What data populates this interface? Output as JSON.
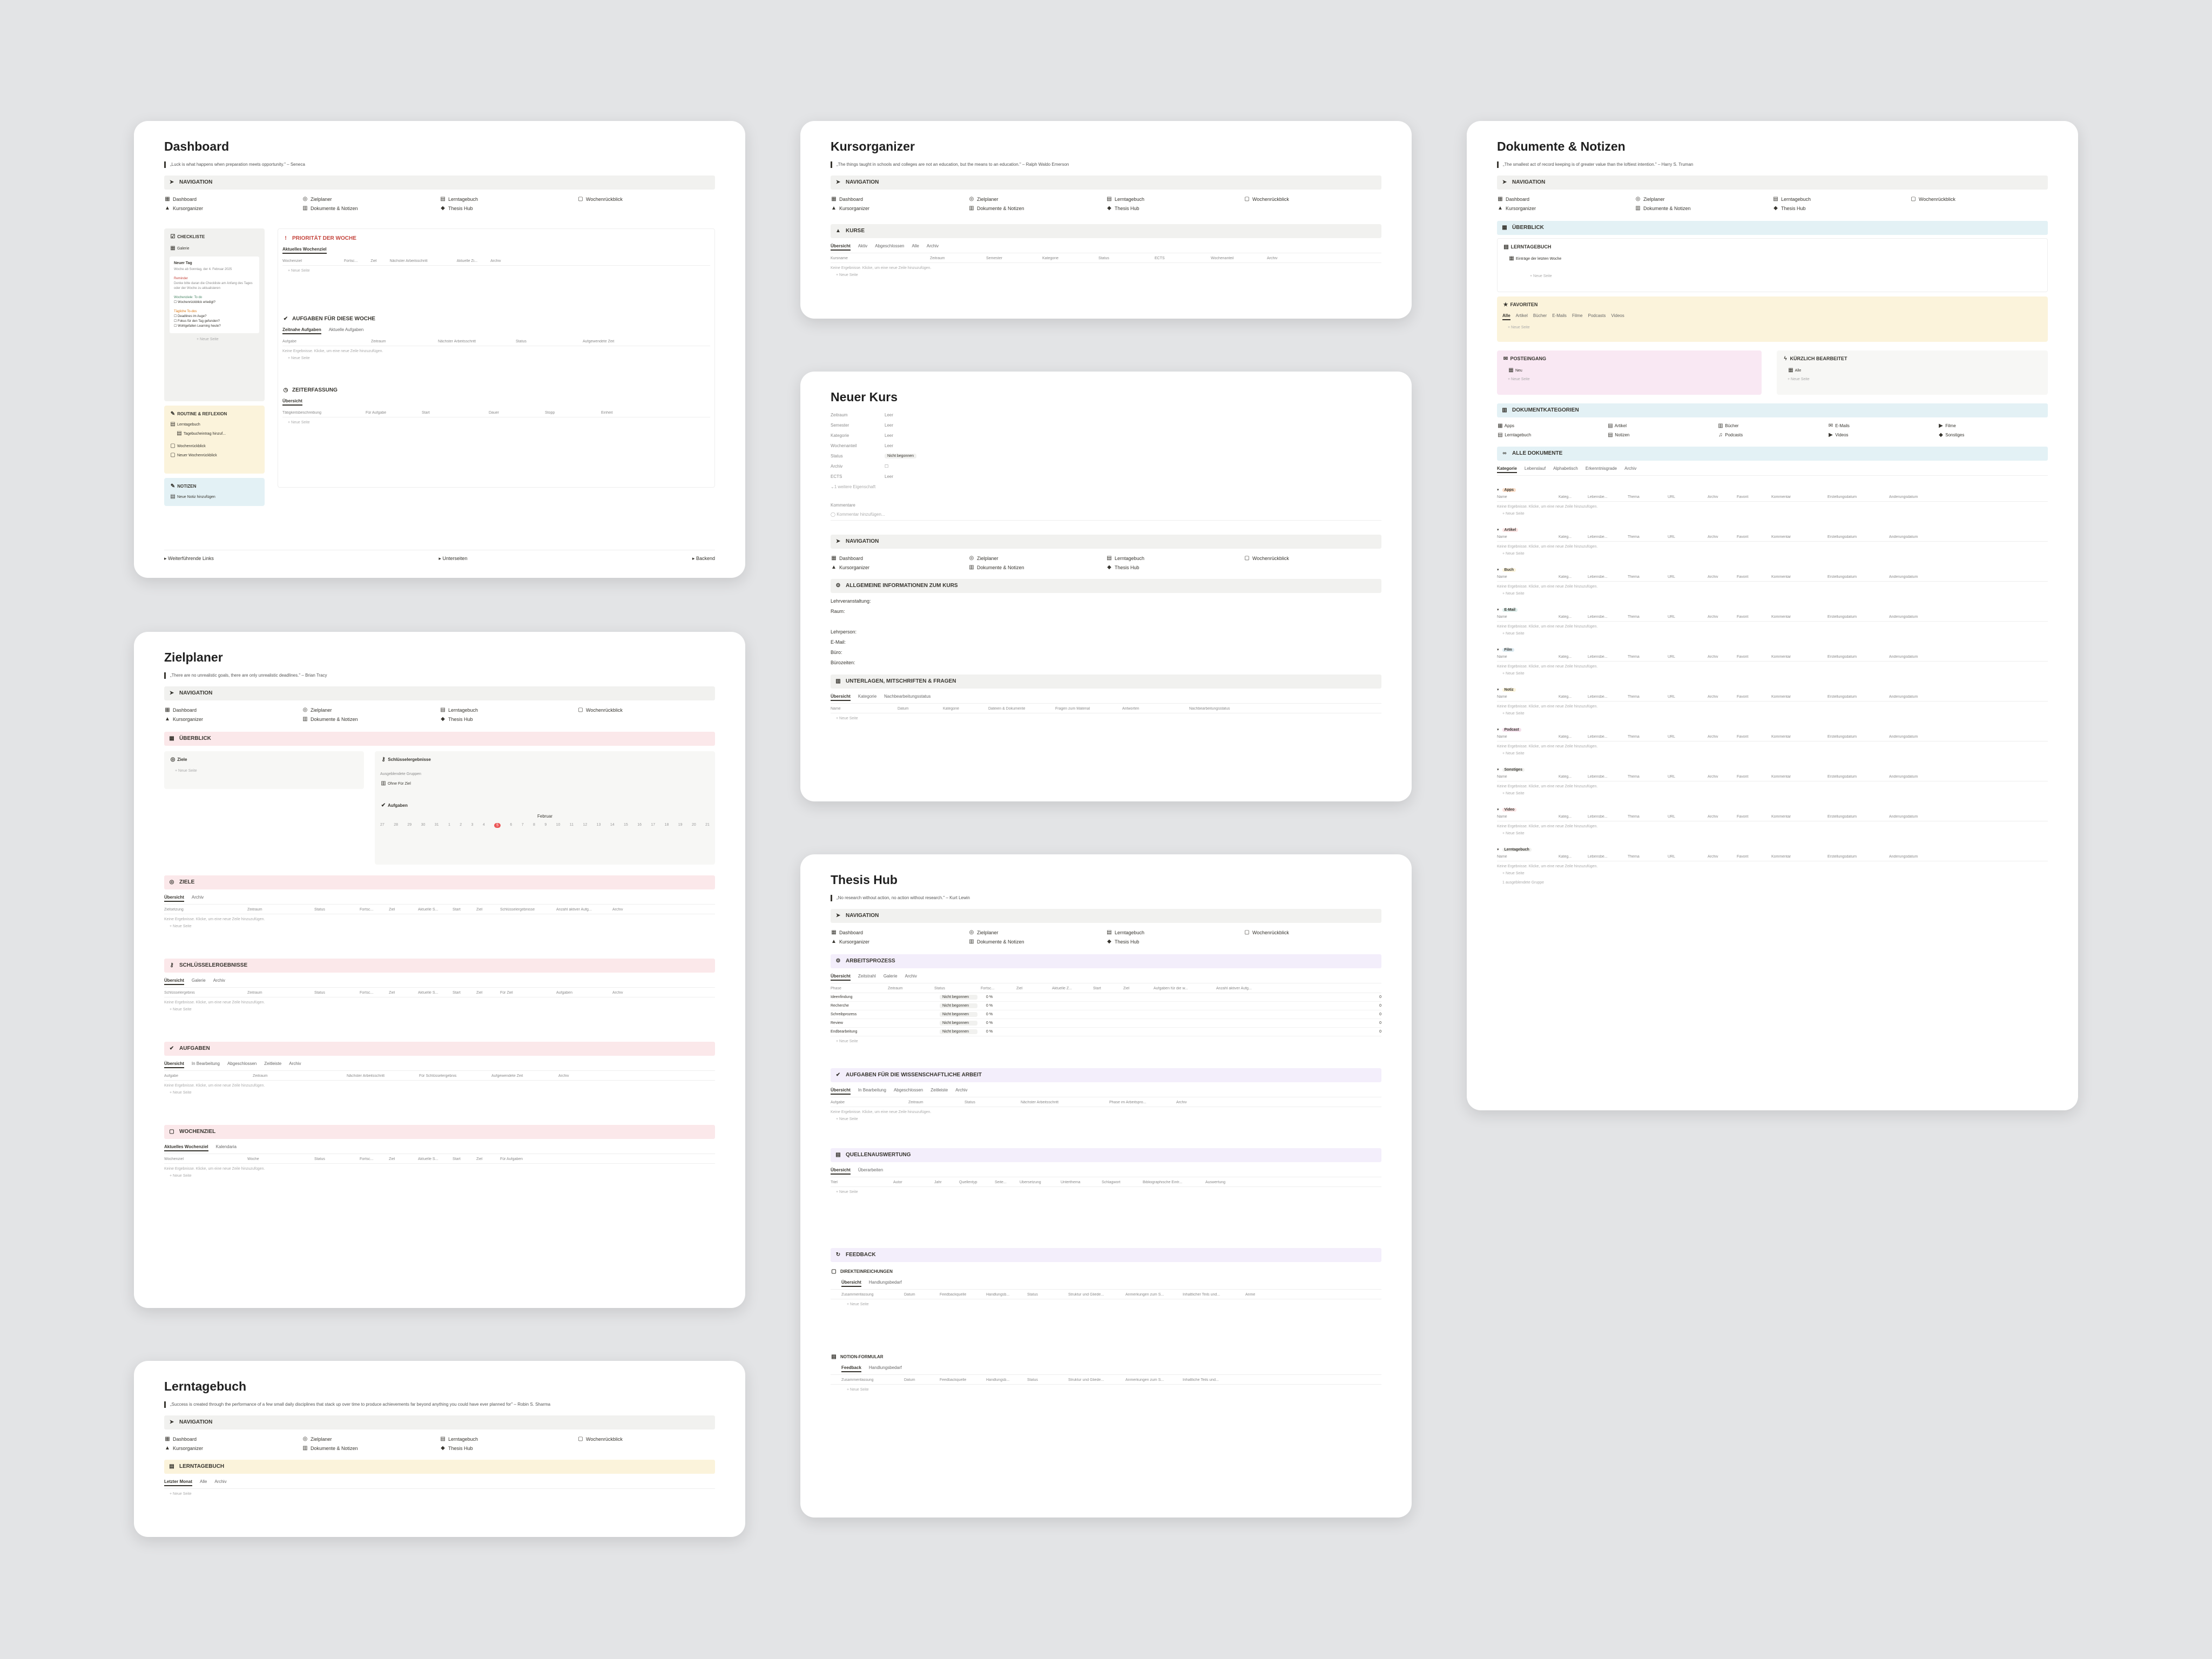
{
  "nav": [
    "Dashboard",
    "Zielplaner",
    "Lerntagebuch",
    "Wochenrückblick",
    "Kursorganizer",
    "Dokumente & Notizen",
    "Thesis Hub"
  ],
  "common": {
    "navigation": "NAVIGATION",
    "new_page": "+ Neue Seite",
    "empty": "Keine Ergebnisse. Klicke, um eine neue Zeile hinzuzufügen."
  },
  "dashboard": {
    "title": "Dashboard",
    "quote": "„Luck is what happens when preparation meets opportunity.\" – Seneca",
    "checklist": "CHECKLISTE",
    "checklist_sub": "Galerie",
    "neuer_tag": "Neuer Tag",
    "neuer_tag_date": "Woche ab Sonntag, der 4. Februar 2025",
    "reminder": "Reminder",
    "reminder_text": "Denke bitte daran die Checkliste am Anfang des Tages oder der Woche zu aktualisieren",
    "wochenziele": "Wochenziele: To do",
    "wochenziele_item": "Wochenrückblick erledigt?",
    "tagliche": "Tägliche To-dos",
    "tagliche_items": [
      "Deadlines im Auge?",
      "Fokus für den Tag gefunden?",
      "Wohlgefallen Learning heute?"
    ],
    "routine": "ROUTINE & REFLEXION",
    "routine_items": [
      "Lerntagebuch",
      "Tagebucheintrag hinzuf...",
      "Wochenrückblick",
      "Neuer Wochenrückblick"
    ],
    "notizen": "NOTIZEN",
    "notizen_item": "Neue Notiz hinzufügen",
    "prioritat": "PRIORITÄT DER WOCHE",
    "prioritat_tab": "Aktuelles Wochenziel",
    "prioritat_cols": [
      "Wochenziel",
      "Fortsc...",
      "Ziel",
      "Nächster Arbeitsschritt",
      "Aktuelle Zi...",
      "Archiv"
    ],
    "aufgaben": "AUFGABEN FÜR DIESE WOCHE",
    "aufgaben_tabs": [
      "Zeitnahe Aufgaben",
      "Aktuelle Aufgaben"
    ],
    "aufgaben_cols": [
      "Aufgabe",
      "Zeitraum",
      "Nächster Arbeitsschritt",
      "Status",
      "Aufgewendete Zeit"
    ],
    "zeiterfassung": "ZEITERFASSUNG",
    "zeit_tab": "Übersicht",
    "zeit_cols": [
      "Tätigkeitsbeschreibung",
      "Für Aufgabe",
      "Start",
      "Dauer",
      "Stopp",
      "Einheit"
    ],
    "footer": [
      "Weiterführende Links",
      "Unterseiten",
      "Backend"
    ]
  },
  "kursorganizer": {
    "title": "Kursorganizer",
    "quote": "„The things taught in schools and colleges are not an education, but the means to an education.\" – Ralph Waldo Emerson",
    "kurse": "KURSE",
    "tabs": [
      "Übersicht",
      "Aktiv",
      "Abgeschlossen",
      "Alle",
      "Archiv"
    ],
    "cols": [
      "Kursname",
      "Zeitraum",
      "Semester",
      "Kategorie",
      "Status",
      "ECTS",
      "Wochenanteil",
      "Archiv"
    ]
  },
  "neuer_kurs": {
    "title": "Neuer Kurs",
    "props": [
      {
        "k": "Zeitraum",
        "v": "Leer"
      },
      {
        "k": "Semester",
        "v": "Leer"
      },
      {
        "k": "Kategorie",
        "v": "Leer"
      },
      {
        "k": "Wochenanteil",
        "v": "Leer"
      },
      {
        "k": "Status",
        "v": "Nicht begonnen"
      },
      {
        "k": "Archiv",
        "v": ""
      },
      {
        "k": "ECTS",
        "v": "Leer"
      }
    ],
    "more": "1 weitere Eigenschaft",
    "comments": "Kommentare",
    "add_comment": "Kommentar hinzufügen...",
    "info": "ALLGEMEINE INFORMATIONEN ZUM KURS",
    "info_lines": [
      "Lehrveranstaltung:",
      "Raum:",
      "Lehrperson:",
      "E-Mail:",
      "Büro:",
      "Bürozeiten:"
    ],
    "unterlagen": "UNTERLAGEN, MITSCHRIFTEN & FRAGEN",
    "unter_tabs": [
      "Übersicht",
      "Kategorie",
      "Nachbearbeitungsstatus"
    ],
    "unter_cols": [
      "Name",
      "Datum",
      "Kategorie",
      "Dateien & Dokumente",
      "Fragen zum Material",
      "Antworten",
      "Nachbearbeitungsstatus"
    ]
  },
  "thesis": {
    "title": "Thesis Hub",
    "quote": "„No research without action, no action without research.\" – Kurt Lewin",
    "arbeitsprozess": "ARBEITSPROZESS",
    "ap_tabs": [
      "Übersicht",
      "Zeitstrahl",
      "Galerie",
      "Archiv"
    ],
    "ap_cols": [
      "Phase",
      "Zeitraum",
      "Status",
      "Fortsc...",
      "Ziel",
      "Aktuelle Z...",
      "Start",
      "Ziel",
      "Aufgaben für die w...",
      "Anzahl aktiver Aufg..."
    ],
    "phases": [
      {
        "name": "Ideenfindung",
        "status": "Nicht begonnen",
        "pct": "0 %",
        "count": "0"
      },
      {
        "name": "Recherche",
        "status": "Nicht begonnen",
        "pct": "0 %",
        "count": "0"
      },
      {
        "name": "Schreibprozess",
        "status": "Nicht begonnen",
        "pct": "0 %",
        "count": "0"
      },
      {
        "name": "Review",
        "status": "Nicht begonnen",
        "pct": "0 %",
        "count": "0"
      },
      {
        "name": "Endbearbeitung",
        "status": "Nicht begonnen",
        "pct": "0 %",
        "count": "0"
      }
    ],
    "aufgaben": "AUFGABEN FÜR DIE WISSENSCHAFTLICHE ARBEIT",
    "auf_tabs": [
      "Übersicht",
      "In Bearbeitung",
      "Abgeschlossen",
      "Zeitleiste",
      "Archiv"
    ],
    "auf_cols": [
      "Aufgabe",
      "Zeitraum",
      "Status",
      "Nächster Arbeitsschritt",
      "Phase im Arbeitspro...",
      "Archiv"
    ],
    "quellen": "QUELLENAUSWERTUNG",
    "q_tabs": [
      "Übersicht",
      "Überarbeiten"
    ],
    "q_cols": [
      "Titel",
      "Autor",
      "Jahr",
      "Quellentyp",
      "Seite...",
      "Übersetzung",
      "Unterthema",
      "Schlagwort",
      "Bibliographische Eintr...",
      "Auswertung"
    ],
    "feedback": "FEEDBACK",
    "direkt": "DIREKTEINREICHUNGEN",
    "d_tabs": [
      "Übersicht",
      "Handlungsbedarf"
    ],
    "d_cols": [
      "Zusammenfassung",
      "Datum",
      "Feedbackquelle",
      "Handlungsb...",
      "Status",
      "Struktur und Gliede...",
      "Anmerkungen zum S...",
      "Inhaltlicher Teils und...",
      "Anme"
    ],
    "formular": "NOTION-FORMULAR",
    "f_tabs": [
      "Feedback",
      "Handlungsbedarf"
    ],
    "f_cols": [
      "Zusammenfassung",
      "Datum",
      "Feedbackquelle",
      "Handlungsb...",
      "Status",
      "Struktur und Gliede...",
      "Anmerkungen zum S...",
      "Inhaltliche Teils und..."
    ]
  },
  "zielplaner": {
    "title": "Zielplaner",
    "quote": "„There are no unrealistic goals, there are only unrealistic deadlines.\" – Brian Tracy",
    "uberblick": "ÜBERBLICK",
    "ziele_label": "Ziele",
    "schluessel_label": "Schlüsselergebnisse",
    "ausgeblendet": "Ausgeblendete Gruppen",
    "ohne_ziel": "Ohne Für Ziel",
    "aufgaben_label": "Aufgaben",
    "month": "Februar",
    "days": [
      "27",
      "28",
      "29",
      "30",
      "31",
      "1",
      "2",
      "3",
      "4",
      "5",
      "6",
      "7",
      "8",
      "9",
      "10",
      "11",
      "12",
      "13",
      "14",
      "15",
      "16",
      "17",
      "18",
      "19",
      "20",
      "21"
    ],
    "today_index": 9,
    "ziele": "ZIELE",
    "z_tabs": [
      "Übersicht",
      "Archiv"
    ],
    "z_cols": [
      "Zielsetzung",
      "Zeitraum",
      "Status",
      "Fortsc...",
      "Ziel",
      "Aktuelle S...",
      "Start",
      "Ziel",
      "Schlüsselergebnisse",
      "Anzahl aktiver Aufg...",
      "Archiv"
    ],
    "schluessel": "SCHLÜSSELERGEBNISSE",
    "s_tabs": [
      "Übersicht",
      "Galerie",
      "Archiv"
    ],
    "s_cols": [
      "Schlüsselergebnis",
      "Zeitraum",
      "Status",
      "Fortsc...",
      "Ziel",
      "Aktuelle S...",
      "Start",
      "Ziel",
      "Für Ziel",
      "Aufgaben",
      "Archiv"
    ],
    "aufgaben": "AUFGABEN",
    "a_tabs": [
      "Übersicht",
      "In Bearbeitung",
      "Abgeschlossen",
      "Zeitleiste",
      "Archiv"
    ],
    "a_cols": [
      "Aufgabe",
      "Zeitraum",
      "Nächster Arbeitsschritt",
      "Für Schlüsselergebnis",
      "Aufgewendete Zeit",
      "Archiv"
    ],
    "wochenziel": "WOCHENZIEL",
    "w_tabs": [
      "Aktuelles Wochenziel",
      "Kalendaria"
    ],
    "w_cols": [
      "Wochenziel",
      "Woche",
      "Status",
      "Fortsc...",
      "Ziel",
      "Aktuelle S...",
      "Start",
      "Ziel",
      "Für Aufgaben"
    ]
  },
  "lerntagebuch": {
    "title": "Lerntagebuch",
    "quote": "„Success is created through the performance of a few small daily disciplines that stack up over time to produce achievements far beyond anything you could have ever planned for\" – Robin S. Sharma",
    "section": "LERNTAGEBUCH",
    "tabs": [
      "Letzter Monat",
      "Alle",
      "Archiv"
    ]
  },
  "dokumente": {
    "title": "Dokumente & Notizen",
    "quote": "„The smallest act of record keeping is of greater value than the loftiest intention.\" – Harry S. Truman",
    "uberblick": "ÜBERBLICK",
    "lerntagebuch": "LERNTAGEBUCH",
    "lern_item": "Einträge der letzten Woche",
    "favoriten": "FAVORITEN",
    "fav_tabs": [
      "Alle",
      "Artikel",
      "Bücher",
      "E-Mails",
      "Filme",
      "Podcasts",
      "Videos"
    ],
    "posteingang": "POSTEINGANG",
    "post_item": "Neu",
    "kuerzlich": "KÜRZLICH BEARBEITET",
    "kuerz_item": "Alle",
    "kategorien": "DOKUMENTKATEGORIEN",
    "kats": [
      "Apps",
      "Artikel",
      "Bücher",
      "E-Mails",
      "Filme",
      "Lerntagebuch",
      "Notizen",
      "Podcasts",
      "Videos",
      "Sonstiges"
    ],
    "alle": "ALLE DOKUMENTE",
    "alle_tabs": [
      "Kategorie",
      "Lebenslauf",
      "Alphabetisch",
      "Erkenntnisgrade",
      "Archiv"
    ],
    "doc_cols": [
      "Name",
      "Kateg...",
      "Lebensbe...",
      "Thema",
      "URL",
      "Archiv",
      "Favorit",
      "Kommentar",
      "Erstellungsdatum",
      "Änderungsdatum"
    ],
    "groups": [
      {
        "name": "Apps",
        "color": "#fadec9"
      },
      {
        "name": "Artikel",
        "color": "#fbe4e4"
      },
      {
        "name": "Buch",
        "color": "#fbf3db"
      },
      {
        "name": "E-Mail",
        "color": "#ddedea"
      },
      {
        "name": "Film",
        "color": "#ddebf1"
      },
      {
        "name": "Notiz",
        "color": "#fbf3db"
      },
      {
        "name": "Podcast",
        "color": "#f4dfeb"
      },
      {
        "name": "Sonstiges",
        "color": "#f1f1ef"
      },
      {
        "name": "Video",
        "color": "#fbe4e4"
      },
      {
        "name": "Lerntagebuch",
        "color": "#f1f1ef"
      }
    ],
    "hidden_groups": "1 ausgeblendete Gruppe"
  },
  "colors": {
    "accent_red": "#c4453d",
    "today": "#eb5757"
  }
}
